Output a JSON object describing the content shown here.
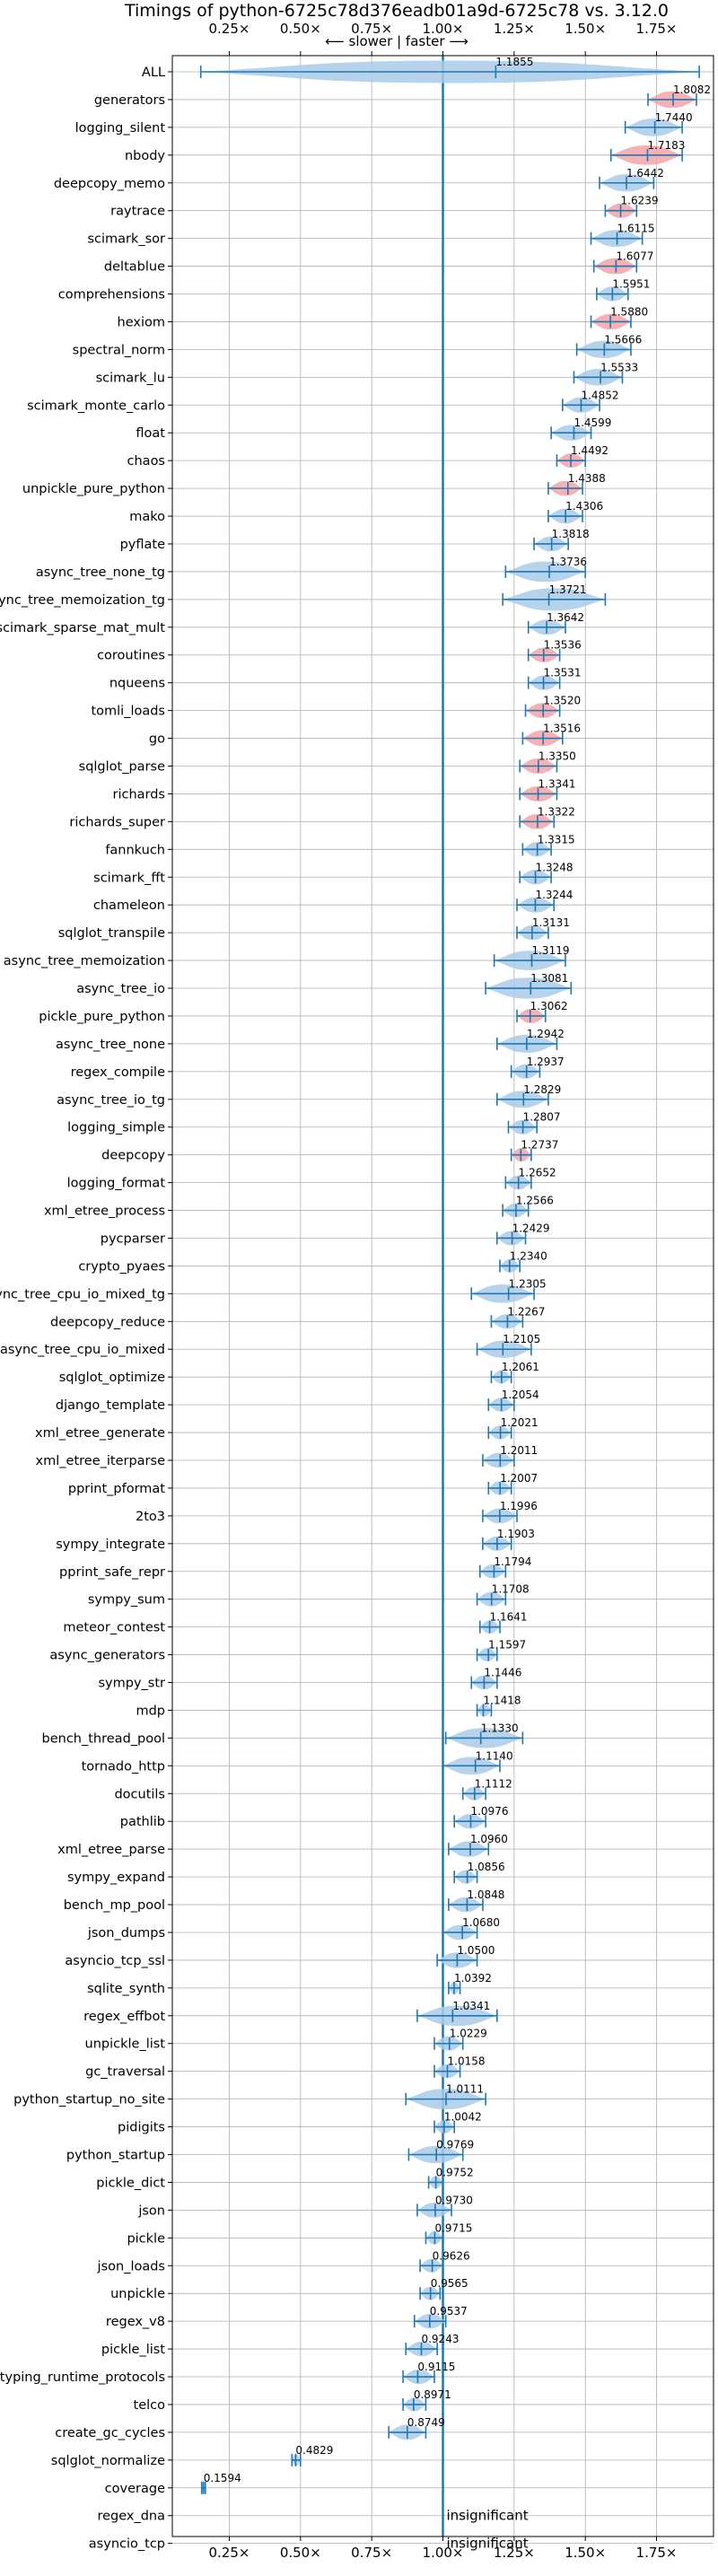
{
  "chart_data": {
    "type": "violin",
    "title": "Timings of python-6725c78d376eadb01a9d-6725c78 vs. 3.12.0",
    "direction_hint": "⟵ slower  |  faster ⟶",
    "x_ticks": [
      0.25,
      0.5,
      0.75,
      1.0,
      1.25,
      1.5,
      1.75
    ],
    "x_tick_labels": [
      "0.25×",
      "0.50×",
      "0.75×",
      "1.00×",
      "1.25×",
      "1.50×",
      "1.75×"
    ],
    "xlim": [
      0.05,
      1.95
    ],
    "reference_line": 1.0,
    "grid": true,
    "insignificant_text": "insignificant",
    "colors": {
      "normal": "#1f77b4",
      "slower_highlight": "#f4a3a8",
      "violin_fill": "#a9cbe8"
    },
    "benchmarks": [
      {
        "name": "ALL",
        "value": 1.1855,
        "lo": 0.15,
        "hi": 1.9
      },
      {
        "name": "generators",
        "value": 1.8082,
        "lo": 1.72,
        "hi": 1.89,
        "highlight": true
      },
      {
        "name": "logging_silent",
        "value": 1.744,
        "lo": 1.64,
        "hi": 1.84
      },
      {
        "name": "nbody",
        "value": 1.7183,
        "lo": 1.59,
        "hi": 1.84,
        "highlight": true
      },
      {
        "name": "deepcopy_memo",
        "value": 1.6442,
        "lo": 1.55,
        "hi": 1.74
      },
      {
        "name": "raytrace",
        "value": 1.6239,
        "lo": 1.57,
        "hi": 1.68,
        "highlight": true
      },
      {
        "name": "scimark_sor",
        "value": 1.6115,
        "lo": 1.52,
        "hi": 1.7
      },
      {
        "name": "deltablue",
        "value": 1.6077,
        "lo": 1.53,
        "hi": 1.68,
        "highlight": true
      },
      {
        "name": "comprehensions",
        "value": 1.5951,
        "lo": 1.54,
        "hi": 1.65
      },
      {
        "name": "hexiom",
        "value": 1.588,
        "lo": 1.52,
        "hi": 1.66,
        "highlight": true
      },
      {
        "name": "spectral_norm",
        "value": 1.5666,
        "lo": 1.47,
        "hi": 1.66
      },
      {
        "name": "scimark_lu",
        "value": 1.5533,
        "lo": 1.46,
        "hi": 1.63
      },
      {
        "name": "scimark_monte_carlo",
        "value": 1.4852,
        "lo": 1.42,
        "hi": 1.55
      },
      {
        "name": "float",
        "value": 1.4599,
        "lo": 1.38,
        "hi": 1.52
      },
      {
        "name": "chaos",
        "value": 1.4492,
        "lo": 1.4,
        "hi": 1.5,
        "highlight": true
      },
      {
        "name": "unpickle_pure_python",
        "value": 1.4388,
        "lo": 1.37,
        "hi": 1.49,
        "highlight": true
      },
      {
        "name": "mako",
        "value": 1.4306,
        "lo": 1.37,
        "hi": 1.49
      },
      {
        "name": "pyflate",
        "value": 1.3818,
        "lo": 1.32,
        "hi": 1.44
      },
      {
        "name": "async_tree_none_tg",
        "value": 1.3736,
        "lo": 1.22,
        "hi": 1.5
      },
      {
        "name": "async_tree_memoization_tg",
        "value": 1.3721,
        "lo": 1.21,
        "hi": 1.57
      },
      {
        "name": "scimark_sparse_mat_mult",
        "value": 1.3642,
        "lo": 1.3,
        "hi": 1.43
      },
      {
        "name": "coroutines",
        "value": 1.3536,
        "lo": 1.3,
        "hi": 1.41,
        "highlight": true
      },
      {
        "name": "nqueens",
        "value": 1.3531,
        "lo": 1.3,
        "hi": 1.41
      },
      {
        "name": "tomli_loads",
        "value": 1.352,
        "lo": 1.29,
        "hi": 1.41,
        "highlight": true
      },
      {
        "name": "go",
        "value": 1.3516,
        "lo": 1.28,
        "hi": 1.42,
        "highlight": true
      },
      {
        "name": "sqlglot_parse",
        "value": 1.335,
        "lo": 1.27,
        "hi": 1.4,
        "highlight": true
      },
      {
        "name": "richards",
        "value": 1.3341,
        "lo": 1.27,
        "hi": 1.4,
        "highlight": true
      },
      {
        "name": "richards_super",
        "value": 1.3322,
        "lo": 1.27,
        "hi": 1.39,
        "highlight": true
      },
      {
        "name": "fannkuch",
        "value": 1.3315,
        "lo": 1.28,
        "hi": 1.38
      },
      {
        "name": "scimark_fft",
        "value": 1.3248,
        "lo": 1.27,
        "hi": 1.38
      },
      {
        "name": "chameleon",
        "value": 1.3244,
        "lo": 1.26,
        "hi": 1.39
      },
      {
        "name": "sqlglot_transpile",
        "value": 1.3131,
        "lo": 1.26,
        "hi": 1.37
      },
      {
        "name": "async_tree_memoization",
        "value": 1.3119,
        "lo": 1.18,
        "hi": 1.43
      },
      {
        "name": "async_tree_io",
        "value": 1.3081,
        "lo": 1.15,
        "hi": 1.45
      },
      {
        "name": "pickle_pure_python",
        "value": 1.3062,
        "lo": 1.26,
        "hi": 1.36,
        "highlight": true
      },
      {
        "name": "async_tree_none",
        "value": 1.2942,
        "lo": 1.19,
        "hi": 1.4
      },
      {
        "name": "regex_compile",
        "value": 1.2937,
        "lo": 1.24,
        "hi": 1.34
      },
      {
        "name": "async_tree_io_tg",
        "value": 1.2829,
        "lo": 1.19,
        "hi": 1.37
      },
      {
        "name": "logging_simple",
        "value": 1.2807,
        "lo": 1.23,
        "hi": 1.33
      },
      {
        "name": "deepcopy",
        "value": 1.2737,
        "lo": 1.24,
        "hi": 1.31,
        "highlight": true
      },
      {
        "name": "logging_format",
        "value": 1.2652,
        "lo": 1.22,
        "hi": 1.31
      },
      {
        "name": "xml_etree_process",
        "value": 1.2566,
        "lo": 1.21,
        "hi": 1.3
      },
      {
        "name": "pycparser",
        "value": 1.2429,
        "lo": 1.19,
        "hi": 1.29
      },
      {
        "name": "crypto_pyaes",
        "value": 1.234,
        "lo": 1.2,
        "hi": 1.27
      },
      {
        "name": "async_tree_cpu_io_mixed_tg",
        "value": 1.2305,
        "lo": 1.1,
        "hi": 1.32
      },
      {
        "name": "deepcopy_reduce",
        "value": 1.2267,
        "lo": 1.17,
        "hi": 1.28
      },
      {
        "name": "async_tree_cpu_io_mixed",
        "value": 1.2105,
        "lo": 1.12,
        "hi": 1.31
      },
      {
        "name": "sqlglot_optimize",
        "value": 1.2061,
        "lo": 1.17,
        "hi": 1.24
      },
      {
        "name": "django_template",
        "value": 1.2054,
        "lo": 1.16,
        "hi": 1.25
      },
      {
        "name": "xml_etree_generate",
        "value": 1.2021,
        "lo": 1.16,
        "hi": 1.24
      },
      {
        "name": "xml_etree_iterparse",
        "value": 1.2011,
        "lo": 1.14,
        "hi": 1.25
      },
      {
        "name": "pprint_pformat",
        "value": 1.2007,
        "lo": 1.16,
        "hi": 1.24
      },
      {
        "name": "2to3",
        "value": 1.1996,
        "lo": 1.14,
        "hi": 1.26
      },
      {
        "name": "sympy_integrate",
        "value": 1.1903,
        "lo": 1.14,
        "hi": 1.24
      },
      {
        "name": "pprint_safe_repr",
        "value": 1.1794,
        "lo": 1.13,
        "hi": 1.22
      },
      {
        "name": "sympy_sum",
        "value": 1.1708,
        "lo": 1.12,
        "hi": 1.22
      },
      {
        "name": "meteor_contest",
        "value": 1.1641,
        "lo": 1.13,
        "hi": 1.2
      },
      {
        "name": "async_generators",
        "value": 1.1597,
        "lo": 1.12,
        "hi": 1.19
      },
      {
        "name": "sympy_str",
        "value": 1.1446,
        "lo": 1.1,
        "hi": 1.19
      },
      {
        "name": "mdp",
        "value": 1.1418,
        "lo": 1.12,
        "hi": 1.17
      },
      {
        "name": "bench_thread_pool",
        "value": 1.133,
        "lo": 1.01,
        "hi": 1.28
      },
      {
        "name": "tornado_http",
        "value": 1.114,
        "lo": 1.0,
        "hi": 1.2
      },
      {
        "name": "docutils",
        "value": 1.1112,
        "lo": 1.07,
        "hi": 1.15
      },
      {
        "name": "pathlib",
        "value": 1.0976,
        "lo": 1.04,
        "hi": 1.15
      },
      {
        "name": "xml_etree_parse",
        "value": 1.096,
        "lo": 1.02,
        "hi": 1.16
      },
      {
        "name": "sympy_expand",
        "value": 1.0856,
        "lo": 1.04,
        "hi": 1.12
      },
      {
        "name": "bench_mp_pool",
        "value": 1.0848,
        "lo": 1.02,
        "hi": 1.14
      },
      {
        "name": "json_dumps",
        "value": 1.068,
        "lo": 1.0,
        "hi": 1.12
      },
      {
        "name": "asyncio_tcp_ssl",
        "value": 1.05,
        "lo": 0.98,
        "hi": 1.12
      },
      {
        "name": "sqlite_synth",
        "value": 1.0392,
        "lo": 1.02,
        "hi": 1.06
      },
      {
        "name": "regex_effbot",
        "value": 1.0341,
        "lo": 0.91,
        "hi": 1.19
      },
      {
        "name": "unpickle_list",
        "value": 1.0229,
        "lo": 0.97,
        "hi": 1.07
      },
      {
        "name": "gc_traversal",
        "value": 1.0158,
        "lo": 0.97,
        "hi": 1.06
      },
      {
        "name": "python_startup_no_site",
        "value": 1.0111,
        "lo": 0.87,
        "hi": 1.15
      },
      {
        "name": "pidigits",
        "value": 1.0042,
        "lo": 0.97,
        "hi": 1.04
      },
      {
        "name": "python_startup",
        "value": 0.9769,
        "lo": 0.88,
        "hi": 1.07
      },
      {
        "name": "pickle_dict",
        "value": 0.9752,
        "lo": 0.95,
        "hi": 1.0
      },
      {
        "name": "json",
        "value": 0.973,
        "lo": 0.91,
        "hi": 1.03
      },
      {
        "name": "pickle",
        "value": 0.9715,
        "lo": 0.94,
        "hi": 1.0
      },
      {
        "name": "json_loads",
        "value": 0.9626,
        "lo": 0.92,
        "hi": 1.0
      },
      {
        "name": "unpickle",
        "value": 0.9565,
        "lo": 0.92,
        "hi": 0.99
      },
      {
        "name": "regex_v8",
        "value": 0.9537,
        "lo": 0.9,
        "hi": 1.01
      },
      {
        "name": "pickle_list",
        "value": 0.9243,
        "lo": 0.87,
        "hi": 0.98
      },
      {
        "name": "typing_runtime_protocols",
        "value": 0.9115,
        "lo": 0.86,
        "hi": 0.97
      },
      {
        "name": "telco",
        "value": 0.8971,
        "lo": 0.86,
        "hi": 0.94
      },
      {
        "name": "create_gc_cycles",
        "value": 0.8749,
        "lo": 0.81,
        "hi": 0.94
      },
      {
        "name": "sqlglot_normalize",
        "value": 0.4829,
        "lo": 0.47,
        "hi": 0.5
      },
      {
        "name": "coverage",
        "value": 0.1594,
        "lo": 0.153,
        "hi": 0.166
      },
      {
        "name": "regex_dna",
        "value": null,
        "insignificant": true
      },
      {
        "name": "asyncio_tcp",
        "value": null,
        "insignificant": true
      }
    ]
  }
}
